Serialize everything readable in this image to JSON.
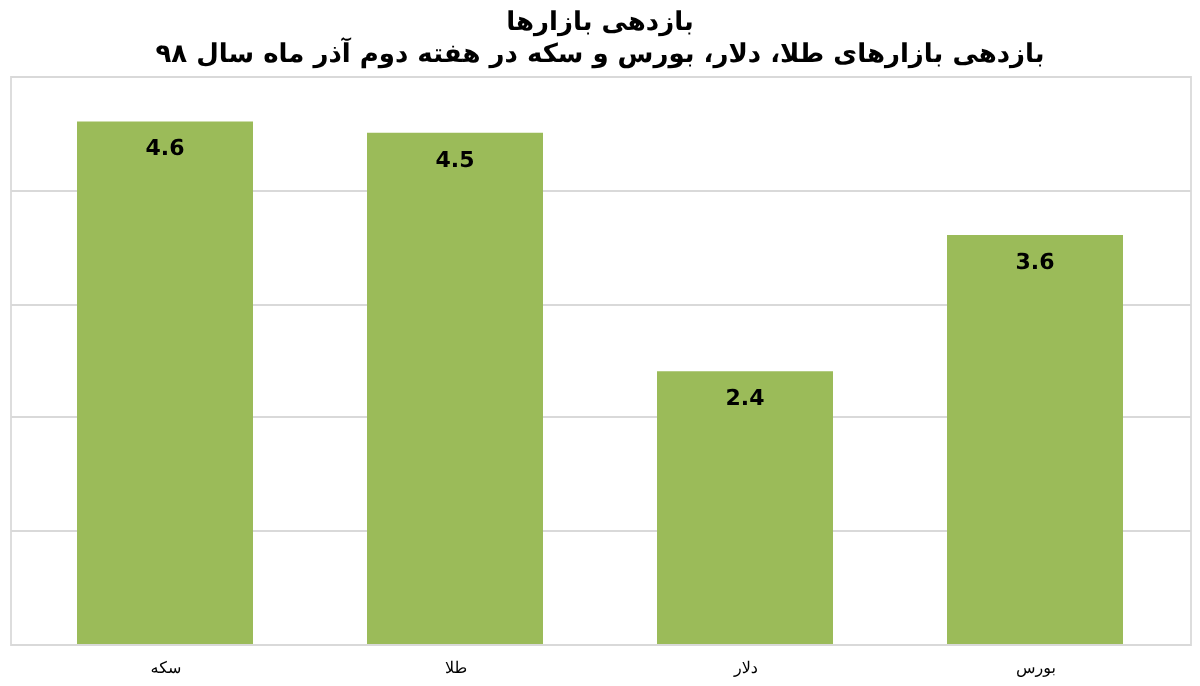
{
  "chart_data": {
    "type": "bar",
    "title": "بازدهی بازارها",
    "subtitle": "بازدهی بازارهای طلا، دلار، بورس و سکه در هفته دوم آذر ماه سال ۹۸",
    "categories": [
      "سکه",
      "طلا",
      "دلار",
      "بورس"
    ],
    "values": [
      4.6,
      4.5,
      2.4,
      3.6
    ],
    "color": "#9bbb59",
    "ylim": [
      0,
      5
    ],
    "yticks": [
      {
        "value": 0,
        "label": null
      },
      {
        "value": 1,
        "label": null
      },
      {
        "value": 2,
        "label": null
      },
      {
        "value": 3,
        "label": null
      },
      {
        "value": 4,
        "label": null
      },
      {
        "value": 5,
        "label": null
      }
    ],
    "tick_labels": "x",
    "grid": "y",
    "data_labels": true,
    "legend": false
  }
}
